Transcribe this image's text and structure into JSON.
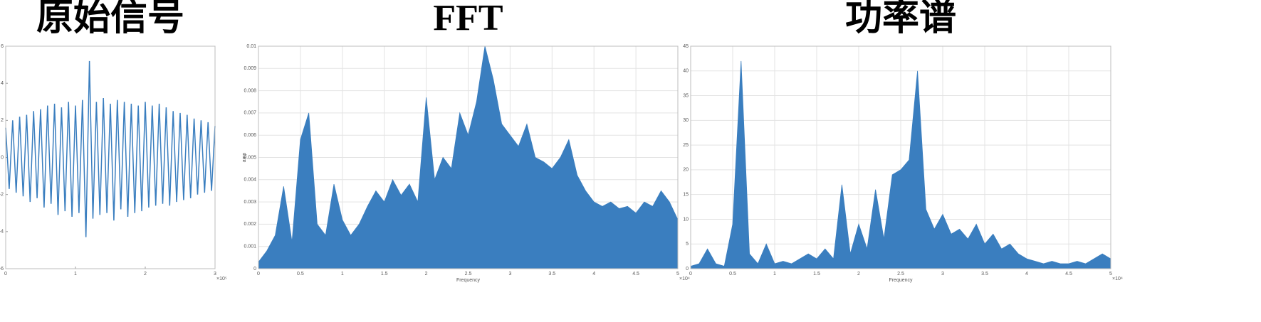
{
  "chart_data": [
    {
      "type": "line",
      "title": "原始信号",
      "color": "#3a7ebf",
      "grid": false,
      "x_exponent_label": "×10⁵",
      "xlim": [
        0,
        3
      ],
      "xticks": [
        0,
        1,
        2,
        3
      ],
      "ylim": [
        -6,
        6
      ],
      "yticks": [
        -6,
        -4,
        -2,
        0,
        2,
        4,
        6
      ],
      "x": [
        0,
        0.05,
        0.1,
        0.15,
        0.2,
        0.25,
        0.3,
        0.35,
        0.4,
        0.45,
        0.5,
        0.55,
        0.6,
        0.65,
        0.7,
        0.75,
        0.8,
        0.85,
        0.9,
        0.95,
        1,
        1.05,
        1.1,
        1.15,
        1.2,
        1.25,
        1.3,
        1.35,
        1.4,
        1.45,
        1.5,
        1.55,
        1.6,
        1.65,
        1.7,
        1.75,
        1.8,
        1.85,
        1.9,
        1.95,
        2,
        2.05,
        2.1,
        2.15,
        2.2,
        2.25,
        2.3,
        2.35,
        2.4,
        2.45,
        2.5,
        2.55,
        2.6,
        2.65,
        2.7,
        2.75,
        2.8,
        2.85,
        2.9,
        2.95,
        3
      ],
      "values": [
        1.6,
        -1.7,
        2.0,
        -1.9,
        2.2,
        -2.1,
        2.3,
        -2.4,
        2.5,
        -2.2,
        2.6,
        -2.7,
        2.8,
        -2.5,
        2.9,
        -3.1,
        2.7,
        -2.9,
        3.0,
        -3.2,
        2.8,
        -3.0,
        3.1,
        -4.3,
        5.2,
        -3.3,
        3.0,
        -3.1,
        3.2,
        -3.0,
        2.9,
        -3.4,
        3.1,
        -2.8,
        3.0,
        -3.2,
        2.9,
        -3.0,
        2.8,
        -2.9,
        3.0,
        -2.7,
        2.8,
        -2.6,
        2.9,
        -2.5,
        2.7,
        -2.6,
        2.5,
        -2.4,
        2.4,
        -2.3,
        2.3,
        -2.2,
        2.1,
        -2.0,
        2.0,
        -1.9,
        1.9,
        -1.8,
        1.7
      ]
    },
    {
      "type": "area",
      "title": "FFT",
      "color": "#3a7ebf",
      "grid": true,
      "x_label": "Frequency",
      "y_label": "amp",
      "x_exponent_label": "×10⁴",
      "xlim": [
        0,
        5
      ],
      "xticks": [
        0,
        0.5,
        1,
        1.5,
        2,
        2.5,
        3,
        3.5,
        4,
        4.5,
        5
      ],
      "ylim": [
        0,
        0.01
      ],
      "yticks": [
        0,
        0.001,
        0.002,
        0.003,
        0.004,
        0.005,
        0.006,
        0.007,
        0.008,
        0.009,
        0.01
      ],
      "x": [
        0,
        0.1,
        0.2,
        0.3,
        0.4,
        0.5,
        0.6,
        0.7,
        0.8,
        0.9,
        1,
        1.1,
        1.2,
        1.3,
        1.4,
        1.5,
        1.6,
        1.7,
        1.8,
        1.9,
        2,
        2.1,
        2.2,
        2.3,
        2.4,
        2.5,
        2.6,
        2.7,
        2.8,
        2.9,
        3,
        3.1,
        3.2,
        3.3,
        3.4,
        3.5,
        3.6,
        3.7,
        3.8,
        3.9,
        4,
        4.1,
        4.2,
        4.3,
        4.4,
        4.5,
        4.6,
        4.7,
        4.8,
        4.9,
        5
      ],
      "values": [
        0.0003,
        0.0008,
        0.0015,
        0.0037,
        0.0012,
        0.0058,
        0.007,
        0.002,
        0.0015,
        0.0038,
        0.0022,
        0.0015,
        0.002,
        0.0028,
        0.0035,
        0.003,
        0.004,
        0.0033,
        0.0038,
        0.003,
        0.0077,
        0.004,
        0.005,
        0.0045,
        0.007,
        0.006,
        0.0075,
        0.01,
        0.0085,
        0.0065,
        0.006,
        0.0055,
        0.0065,
        0.005,
        0.0048,
        0.0045,
        0.005,
        0.0058,
        0.0042,
        0.0035,
        0.003,
        0.0028,
        0.003,
        0.0027,
        0.0028,
        0.0025,
        0.003,
        0.0028,
        0.0035,
        0.003,
        0.0022
      ]
    },
    {
      "type": "area",
      "title": "功率谱",
      "color": "#3a7ebf",
      "grid": true,
      "x_label": "Frequency",
      "x_exponent_label": "×10⁴",
      "xlim": [
        0,
        5
      ],
      "xticks": [
        0,
        0.5,
        1,
        1.5,
        2,
        2.5,
        3,
        3.5,
        4,
        4.5,
        5
      ],
      "ylim": [
        0,
        45
      ],
      "yticks": [
        0,
        5,
        10,
        15,
        20,
        25,
        30,
        35,
        40,
        45
      ],
      "x": [
        0,
        0.1,
        0.2,
        0.3,
        0.4,
        0.5,
        0.6,
        0.7,
        0.8,
        0.9,
        1,
        1.1,
        1.2,
        1.3,
        1.4,
        1.5,
        1.6,
        1.7,
        1.8,
        1.9,
        2,
        2.1,
        2.2,
        2.3,
        2.4,
        2.5,
        2.6,
        2.7,
        2.8,
        2.9,
        3,
        3.1,
        3.2,
        3.3,
        3.4,
        3.5,
        3.6,
        3.7,
        3.8,
        3.9,
        4,
        4.1,
        4.2,
        4.3,
        4.4,
        4.5,
        4.6,
        4.7,
        4.8,
        4.9,
        5
      ],
      "values": [
        0.5,
        1,
        4,
        1,
        0.5,
        9,
        42,
        3,
        1,
        5,
        1,
        1.5,
        1,
        2,
        3,
        2,
        4,
        2,
        17,
        3,
        9,
        4,
        16,
        6,
        19,
        20,
        22,
        40,
        12,
        8,
        11,
        7,
        8,
        6,
        9,
        5,
        7,
        4,
        5,
        3,
        2,
        1.5,
        1,
        1.5,
        1,
        1,
        1.5,
        1,
        2,
        3,
        2
      ]
    }
  ]
}
